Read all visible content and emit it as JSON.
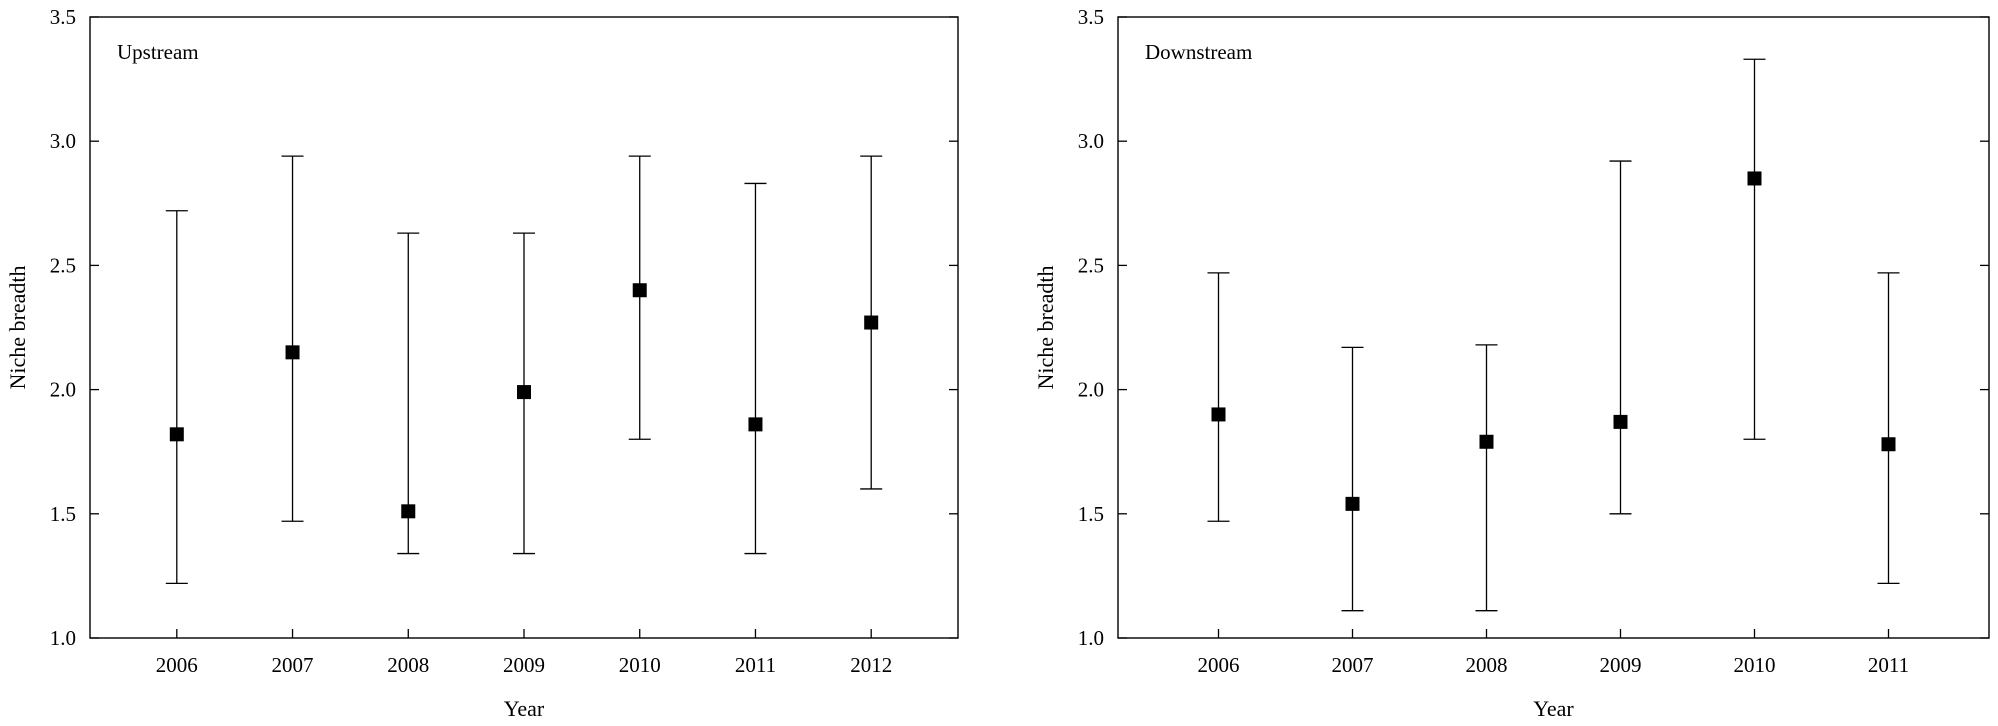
{
  "chart_data": [
    {
      "type": "scatter",
      "subtype": "errorbar",
      "panel_label": "Upstream",
      "xlabel": "Year",
      "ylabel": "Niche breadth",
      "categories": [
        "2006",
        "2007",
        "2008",
        "2009",
        "2010",
        "2011",
        "2012"
      ],
      "values": [
        1.82,
        2.15,
        1.51,
        1.99,
        2.4,
        1.86,
        2.27
      ],
      "lower": [
        1.22,
        1.47,
        1.34,
        1.34,
        1.8,
        1.34,
        1.6
      ],
      "upper": [
        2.72,
        2.94,
        2.63,
        2.63,
        2.94,
        2.83,
        2.94
      ],
      "ylim": [
        1.0,
        3.5
      ],
      "yticks": [
        "1.0",
        "1.5",
        "2.0",
        "2.5",
        "3.0",
        "3.5"
      ],
      "marker": "square",
      "marker_color": "#000000",
      "grid": false,
      "legend": "none"
    },
    {
      "type": "scatter",
      "subtype": "errorbar",
      "panel_label": "Downstream",
      "xlabel": "Year",
      "ylabel": "Niche breadth",
      "categories": [
        "2006",
        "2007",
        "2008",
        "2009",
        "2010",
        "2011"
      ],
      "values": [
        1.9,
        1.54,
        1.79,
        1.87,
        2.85,
        1.78
      ],
      "lower": [
        1.47,
        1.11,
        1.11,
        1.5,
        1.8,
        1.22
      ],
      "upper": [
        2.47,
        2.17,
        2.18,
        2.92,
        3.33,
        2.47
      ],
      "ylim": [
        1.0,
        3.5
      ],
      "yticks": [
        "1.0",
        "1.5",
        "2.0",
        "2.5",
        "3.0",
        "3.5"
      ],
      "marker": "square",
      "marker_color": "#000000",
      "grid": false,
      "legend": "none"
    }
  ]
}
